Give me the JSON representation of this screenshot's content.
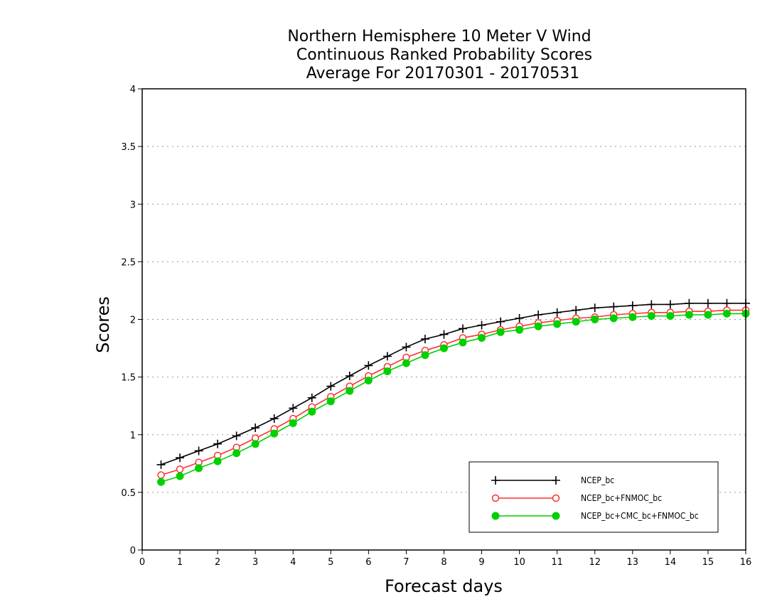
{
  "chart_data": {
    "type": "line",
    "title": [
      "Northern Hemisphere 10 Meter V Wind",
      "Continuous Ranked Probability Scores",
      "Average For 20170301 - 20170531"
    ],
    "xlabel": "Forecast days",
    "ylabel": "Scores",
    "xlim": [
      0,
      16
    ],
    "ylim": [
      0,
      4
    ],
    "xticks": [
      "0",
      "1",
      "2",
      "3",
      "4",
      "5",
      "6",
      "7",
      "8",
      "9",
      "10",
      "11",
      "12",
      "13",
      "14",
      "15",
      "16"
    ],
    "yticks": [
      "0",
      "0.5",
      "1",
      "1.5",
      "2",
      "2.5",
      "3",
      "3.5",
      "4"
    ],
    "grid": "horizontal dotted",
    "legend_position": "bottom-right",
    "x": [
      0.5,
      1,
      1.5,
      2,
      2.5,
      3,
      3.5,
      4,
      4.5,
      5,
      5.5,
      6,
      6.5,
      7,
      7.5,
      8,
      8.5,
      9,
      9.5,
      10,
      10.5,
      11,
      11.5,
      12,
      12.5,
      13,
      13.5,
      14,
      14.5,
      15,
      15.5,
      16
    ],
    "series": [
      {
        "name": "NCEP_bc",
        "color": "#000000",
        "marker": "plus",
        "values": [
          0.74,
          0.8,
          0.86,
          0.92,
          0.99,
          1.06,
          1.14,
          1.23,
          1.32,
          1.42,
          1.51,
          1.6,
          1.68,
          1.76,
          1.83,
          1.87,
          1.92,
          1.95,
          1.98,
          2.01,
          2.04,
          2.06,
          2.08,
          2.1,
          2.11,
          2.12,
          2.13,
          2.13,
          2.14,
          2.14,
          2.14,
          2.14
        ]
      },
      {
        "name": "NCEP_bc+FNMOC_bc",
        "color": "#ff3030",
        "marker": "open-circle",
        "values": [
          0.65,
          0.7,
          0.76,
          0.82,
          0.89,
          0.97,
          1.05,
          1.14,
          1.24,
          1.33,
          1.42,
          1.51,
          1.59,
          1.67,
          1.73,
          1.78,
          1.84,
          1.87,
          1.91,
          1.94,
          1.97,
          1.99,
          2.01,
          2.02,
          2.04,
          2.05,
          2.06,
          2.06,
          2.07,
          2.07,
          2.08,
          2.08
        ]
      },
      {
        "name": "NCEP_bc+CMC_bc+FNMOC_bc",
        "color": "#00d000",
        "marker": "filled-circle",
        "values": [
          0.59,
          0.64,
          0.71,
          0.77,
          0.84,
          0.92,
          1.01,
          1.1,
          1.2,
          1.29,
          1.38,
          1.47,
          1.55,
          1.62,
          1.69,
          1.75,
          1.8,
          1.84,
          1.89,
          1.91,
          1.94,
          1.96,
          1.98,
          2.0,
          2.01,
          2.02,
          2.03,
          2.03,
          2.04,
          2.04,
          2.05,
          2.05
        ]
      }
    ]
  }
}
